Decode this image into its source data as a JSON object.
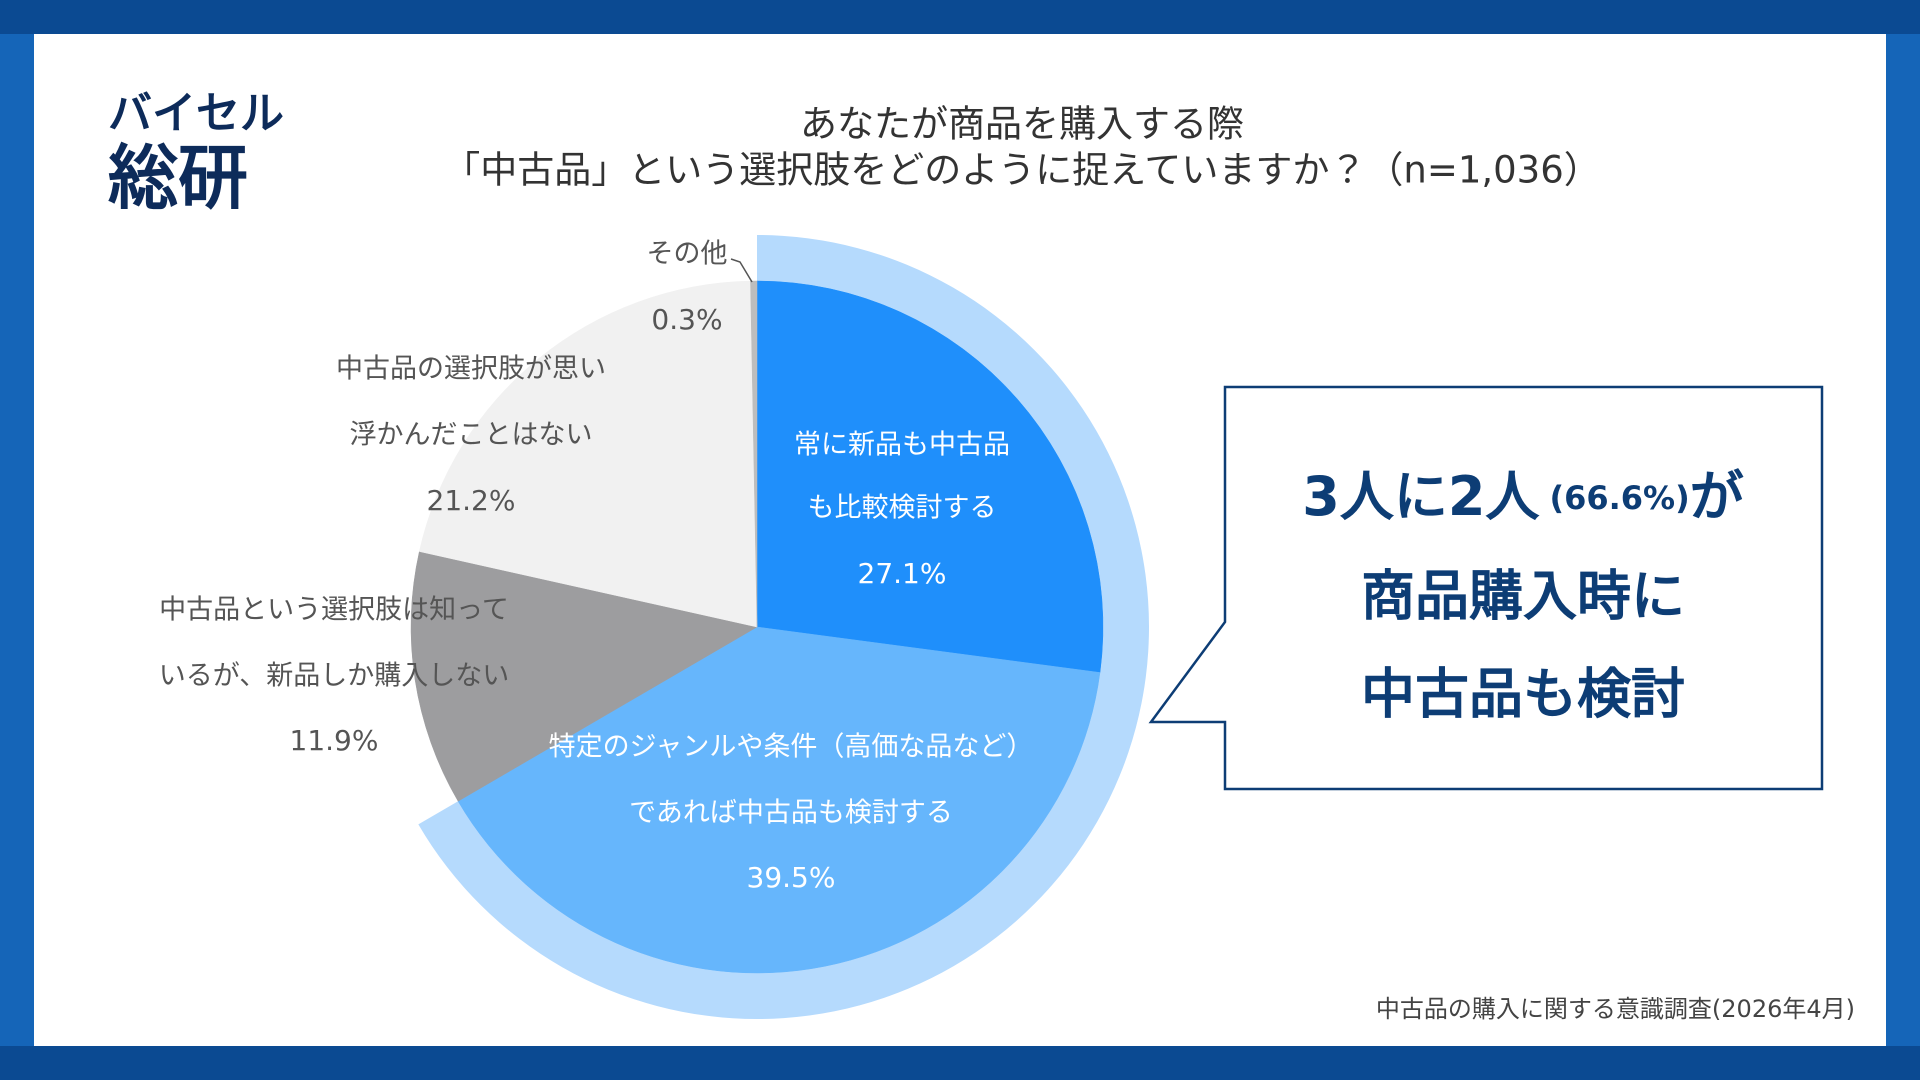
{
  "logo": [
    "バイセル",
    "総研"
  ],
  "callout": {
    "line1": "3人に2人",
    "line1_note": "(66.6%)",
    "line1_end": "が",
    "line2": "商品購入時に",
    "line3": "中古品も検討"
  },
  "source": "中古品の購入に関する意識調査(2026年4月)",
  "chart_data": {
    "type": "pie",
    "title": [
      "あなたが商品を購入する際",
      "「中古品」という選択肢をどのように捉えていますか？（n=1,036）"
    ],
    "categories": [
      [
        "常に新品も中古品",
        "も比較検討する"
      ],
      [
        "特定のジャンルや条件（高価な品など）",
        "であれば中古品も検討する"
      ],
      [
        "中古品という選択肢は知って",
        "いるが、新品しか購入しない"
      ],
      [
        "中古品の選択肢が思い",
        "浮かんだことはない"
      ],
      [
        "その他"
      ]
    ],
    "values": [
      27.1,
      39.5,
      11.9,
      21.2,
      0.3
    ],
    "value_labels": [
      "27.1%",
      "39.5%",
      "11.9%",
      "21.2%",
      "0.3%"
    ],
    "colors": [
      "#1f8ffb",
      "#66b6fc",
      "#9d9d9f",
      "#f1f1f1",
      "#bdbdbd"
    ],
    "highlight_color": "#b5dafd"
  }
}
